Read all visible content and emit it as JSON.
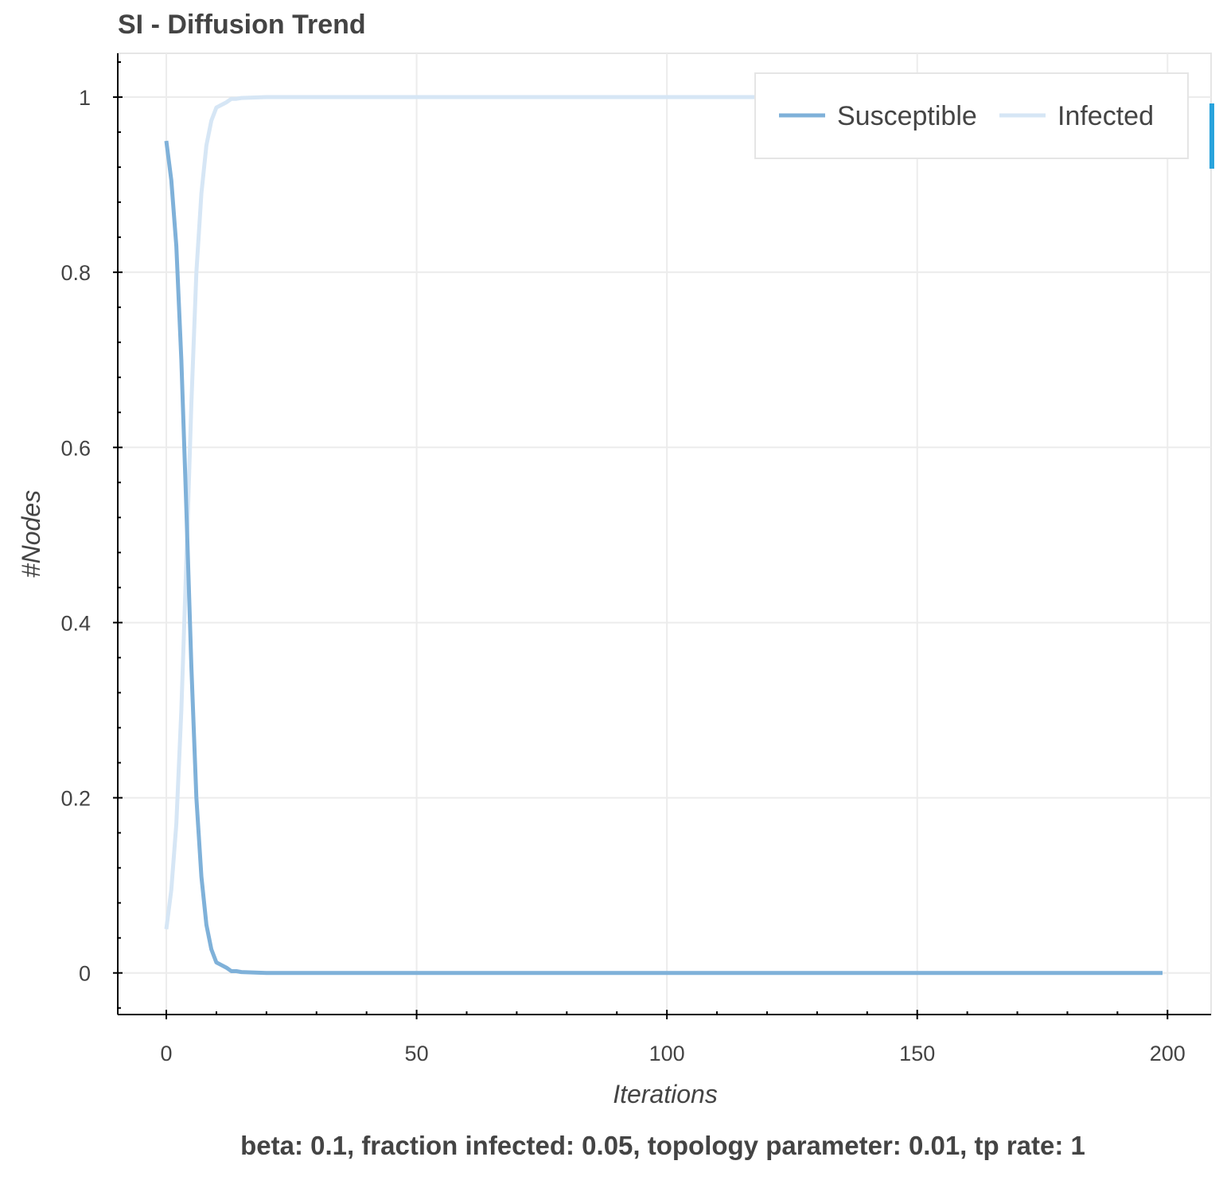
{
  "chart_data": {
    "type": "line",
    "title": "SI - Diffusion Trend",
    "xlabel": "Iterations",
    "ylabel": "#Nodes",
    "caption": "beta: 0.1, fraction infected: 0.05, topology parameter: 0.01, tp rate: 1",
    "xlim": [
      -9.7,
      208.7
    ],
    "ylim": [
      -0.0475,
      1.05
    ],
    "x_ticks": [
      0,
      50,
      100,
      150,
      200
    ],
    "y_ticks": [
      0,
      0.2,
      0.4,
      0.6,
      0.8,
      1
    ],
    "x_tick_labels": [
      "0",
      "50",
      "100",
      "150",
      "200"
    ],
    "y_tick_labels": [
      "0",
      "0.2",
      "0.4",
      "0.6",
      "0.8",
      "1"
    ],
    "grid": true,
    "legend_position": "top-right",
    "series": [
      {
        "name": "Susceptible",
        "color": "#7fb1d9",
        "x": [
          0,
          1,
          2,
          3,
          4,
          5,
          6,
          7,
          8,
          9,
          10,
          11,
          12,
          13,
          14,
          15,
          20,
          50,
          100,
          150,
          199
        ],
        "values": [
          0.95,
          0.905,
          0.83,
          0.7,
          0.53,
          0.35,
          0.2,
          0.11,
          0.055,
          0.027,
          0.012,
          0.009,
          0.006,
          0.002,
          0.002,
          0.001,
          0.0,
          0.0,
          0.0,
          0.0,
          0.0
        ]
      },
      {
        "name": "Infected",
        "color": "#d6e6f5",
        "x": [
          0,
          1,
          2,
          3,
          4,
          5,
          6,
          7,
          8,
          9,
          10,
          11,
          12,
          13,
          14,
          15,
          20,
          50,
          100,
          150,
          199
        ],
        "values": [
          0.05,
          0.095,
          0.17,
          0.3,
          0.47,
          0.65,
          0.8,
          0.89,
          0.945,
          0.973,
          0.988,
          0.991,
          0.994,
          0.998,
          0.998,
          0.999,
          1.0,
          1.0,
          1.0,
          1.0,
          1.0
        ]
      }
    ]
  }
}
